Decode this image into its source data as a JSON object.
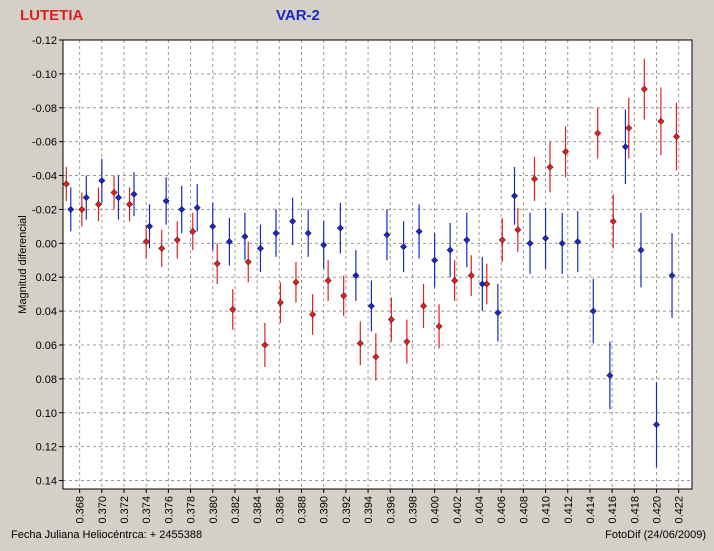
{
  "header": {
    "left_title": "LUTETIA",
    "right_title": "VAR-2"
  },
  "footer": {
    "left_text": "Fecha Juliana Heliocéntrca:  + 2455388",
    "right_text": "FotoDif (24/06/2009)"
  },
  "colors": {
    "series1": "#e02020",
    "series2": "#1a28c8",
    "plot_bg": "#ffffff",
    "window_bg": "#d4d0c8"
  },
  "chart_data": {
    "type": "scatter",
    "ylabel": "Magnitud diferencial",
    "xlabel": "",
    "xlim": [
      0.3665,
      0.4232
    ],
    "ylim": [
      -0.12,
      0.145
    ],
    "y_inverted": true,
    "grid": true,
    "x_ticks": [
      0.368,
      0.37,
      0.372,
      0.374,
      0.376,
      0.378,
      0.38,
      0.382,
      0.384,
      0.386,
      0.388,
      0.39,
      0.392,
      0.394,
      0.396,
      0.398,
      0.4,
      0.402,
      0.404,
      0.406,
      0.408,
      0.41,
      0.412,
      0.414,
      0.416,
      0.418,
      0.42,
      0.422
    ],
    "x_tick_labels": [
      "0.368",
      "0.370",
      "0.372",
      "0.374",
      "0.376",
      "0.378",
      "0.380",
      "0.382",
      "0.384",
      "0.386",
      "0.388",
      "0.390",
      "0.392",
      "0.394",
      "0.396",
      "0.398",
      "0.400",
      "0.402",
      "0.404",
      "0.406",
      "0.408",
      "0.410",
      "0.412",
      "0.414",
      "0.416",
      "0.418",
      "0.420",
      "0.422"
    ],
    "y_ticks": [
      -0.12,
      -0.1,
      -0.08,
      -0.06,
      -0.04,
      -0.02,
      0.0,
      0.02,
      0.04,
      0.06,
      0.08,
      0.1,
      0.12,
      0.14
    ],
    "y_tick_labels": [
      "-0.12",
      "-0.10",
      "-0.08",
      "-0.06",
      "-0.04",
      "-0.02",
      "0.00",
      "0.02",
      "0.04",
      "0.06",
      "0.08",
      "0.10",
      "0.12",
      "0.14"
    ],
    "series": [
      {
        "color": "#e02020",
        "points": [
          {
            "x": 0.3668,
            "y": -0.035,
            "err": 0.01
          },
          {
            "x": 0.3682,
            "y": -0.02,
            "err": 0.01
          },
          {
            "x": 0.3697,
            "y": -0.023,
            "err": 0.01
          },
          {
            "x": 0.3711,
            "y": -0.03,
            "err": 0.01
          },
          {
            "x": 0.3725,
            "y": -0.023,
            "err": 0.01
          },
          {
            "x": 0.374,
            "y": -0.001,
            "err": 0.01
          },
          {
            "x": 0.3754,
            "y": 0.003,
            "err": 0.011
          },
          {
            "x": 0.3768,
            "y": -0.002,
            "err": 0.011
          },
          {
            "x": 0.3782,
            "y": -0.007,
            "err": 0.011
          },
          {
            "x": 0.3804,
            "y": 0.012,
            "err": 0.012
          },
          {
            "x": 0.3818,
            "y": 0.039,
            "err": 0.012
          },
          {
            "x": 0.3832,
            "y": 0.011,
            "err": 0.012
          },
          {
            "x": 0.3847,
            "y": 0.06,
            "err": 0.013
          },
          {
            "x": 0.3861,
            "y": 0.035,
            "err": 0.012
          },
          {
            "x": 0.3875,
            "y": 0.023,
            "err": 0.012
          },
          {
            "x": 0.389,
            "y": 0.042,
            "err": 0.012
          },
          {
            "x": 0.3904,
            "y": 0.022,
            "err": 0.012
          },
          {
            "x": 0.3918,
            "y": 0.031,
            "err": 0.012
          },
          {
            "x": 0.3933,
            "y": 0.059,
            "err": 0.013
          },
          {
            "x": 0.3947,
            "y": 0.067,
            "err": 0.014
          },
          {
            "x": 0.3961,
            "y": 0.045,
            "err": 0.013
          },
          {
            "x": 0.3975,
            "y": 0.058,
            "err": 0.013
          },
          {
            "x": 0.399,
            "y": 0.037,
            "err": 0.013
          },
          {
            "x": 0.4004,
            "y": 0.049,
            "err": 0.013
          },
          {
            "x": 0.4018,
            "y": 0.022,
            "err": 0.012
          },
          {
            "x": 0.4033,
            "y": 0.019,
            "err": 0.012
          },
          {
            "x": 0.4047,
            "y": 0.024,
            "err": 0.012
          },
          {
            "x": 0.4061,
            "y": -0.002,
            "err": 0.013
          },
          {
            "x": 0.4075,
            "y": -0.008,
            "err": 0.013
          },
          {
            "x": 0.409,
            "y": -0.038,
            "err": 0.013
          },
          {
            "x": 0.4104,
            "y": -0.045,
            "err": 0.015
          },
          {
            "x": 0.4118,
            "y": -0.054,
            "err": 0.015
          },
          {
            "x": 0.4147,
            "y": -0.065,
            "err": 0.015
          },
          {
            "x": 0.4161,
            "y": -0.013,
            "err": 0.016
          },
          {
            "x": 0.4175,
            "y": -0.068,
            "err": 0.018
          },
          {
            "x": 0.4189,
            "y": -0.091,
            "err": 0.018
          },
          {
            "x": 0.4204,
            "y": -0.072,
            "err": 0.02
          },
          {
            "x": 0.4218,
            "y": -0.063,
            "err": 0.02
          }
        ]
      },
      {
        "color": "#1a28c8",
        "points": [
          {
            "x": 0.3672,
            "y": -0.02,
            "err": 0.013
          },
          {
            "x": 0.3686,
            "y": -0.027,
            "err": 0.013
          },
          {
            "x": 0.37,
            "y": -0.037,
            "err": 0.013
          },
          {
            "x": 0.3715,
            "y": -0.027,
            "err": 0.013
          },
          {
            "x": 0.3729,
            "y": -0.029,
            "err": 0.013
          },
          {
            "x": 0.3743,
            "y": -0.01,
            "err": 0.013
          },
          {
            "x": 0.3758,
            "y": -0.025,
            "err": 0.014
          },
          {
            "x": 0.3772,
            "y": -0.02,
            "err": 0.014
          },
          {
            "x": 0.3786,
            "y": -0.021,
            "err": 0.014
          },
          {
            "x": 0.38,
            "y": -0.01,
            "err": 0.014
          },
          {
            "x": 0.3815,
            "y": -0.001,
            "err": 0.014
          },
          {
            "x": 0.3829,
            "y": -0.004,
            "err": 0.014
          },
          {
            "x": 0.3843,
            "y": 0.003,
            "err": 0.014
          },
          {
            "x": 0.3857,
            "y": -0.006,
            "err": 0.014
          },
          {
            "x": 0.3872,
            "y": -0.013,
            "err": 0.014
          },
          {
            "x": 0.3886,
            "y": -0.006,
            "err": 0.014
          },
          {
            "x": 0.39,
            "y": 0.001,
            "err": 0.014
          },
          {
            "x": 0.3915,
            "y": -0.009,
            "err": 0.015
          },
          {
            "x": 0.3929,
            "y": 0.019,
            "err": 0.015
          },
          {
            "x": 0.3943,
            "y": 0.037,
            "err": 0.015
          },
          {
            "x": 0.3957,
            "y": -0.005,
            "err": 0.015
          },
          {
            "x": 0.3972,
            "y": 0.002,
            "err": 0.015
          },
          {
            "x": 0.3986,
            "y": -0.007,
            "err": 0.016
          },
          {
            "x": 0.4,
            "y": 0.01,
            "err": 0.016
          },
          {
            "x": 0.4014,
            "y": 0.004,
            "err": 0.016
          },
          {
            "x": 0.4029,
            "y": -0.002,
            "err": 0.016
          },
          {
            "x": 0.4043,
            "y": 0.024,
            "err": 0.016
          },
          {
            "x": 0.4057,
            "y": 0.041,
            "err": 0.017
          },
          {
            "x": 0.4072,
            "y": -0.028,
            "err": 0.017
          },
          {
            "x": 0.4086,
            "y": 0.0,
            "err": 0.018
          },
          {
            "x": 0.41,
            "y": -0.003,
            "err": 0.018
          },
          {
            "x": 0.4115,
            "y": 0.0,
            "err": 0.018
          },
          {
            "x": 0.4129,
            "y": -0.001,
            "err": 0.018
          },
          {
            "x": 0.4143,
            "y": 0.04,
            "err": 0.019
          },
          {
            "x": 0.4158,
            "y": 0.078,
            "err": 0.02
          },
          {
            "x": 0.4172,
            "y": -0.057,
            "err": 0.022
          },
          {
            "x": 0.4186,
            "y": 0.004,
            "err": 0.022
          },
          {
            "x": 0.42,
            "y": 0.107,
            "err": 0.025
          },
          {
            "x": 0.4214,
            "y": 0.019,
            "err": 0.025
          }
        ]
      }
    ]
  }
}
